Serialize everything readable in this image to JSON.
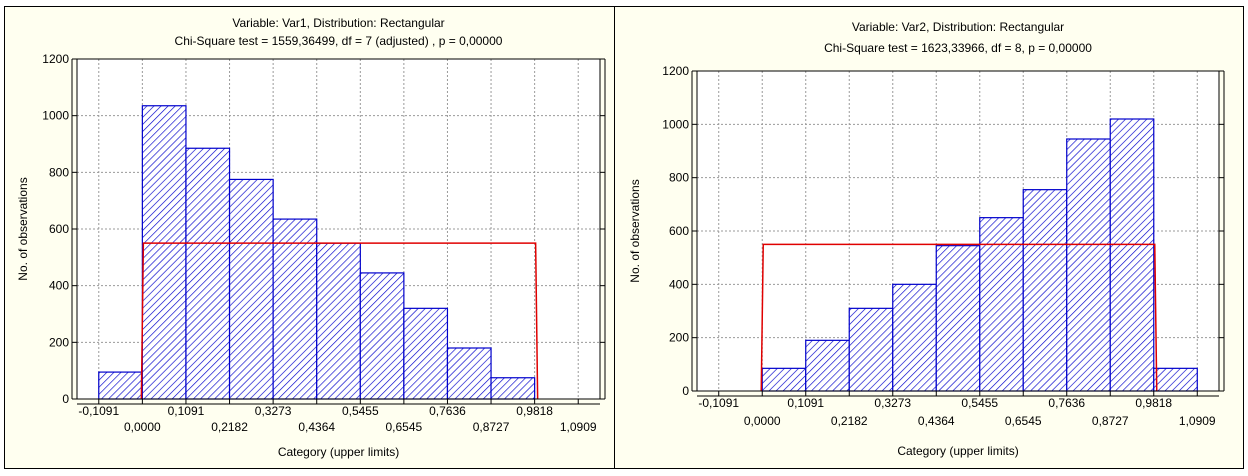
{
  "chart_data": [
    {
      "type": "bar",
      "title": "Variable: Var1, Distribution: Rectangular",
      "subtitle": "Chi-Square test = 1559,36499, df = 7 (adjusted) , p = 0,00000",
      "xlabel": "Category (upper limits)",
      "ylabel": "No. of observations",
      "ylim": [
        0,
        1200
      ],
      "yticks": [
        0,
        200,
        400,
        600,
        800,
        1000,
        1200
      ],
      "xlim": [
        -0.1636,
        1.1454
      ],
      "xticks_top": [
        "-0,1091",
        "0,1091",
        "0,3273",
        "0,5455",
        "0,7636",
        "0,9818"
      ],
      "xticks_bottom": [
        "0,0000",
        "0,2182",
        "0,4364",
        "0,6545",
        "0,8727",
        "1,0909"
      ],
      "bin_edges": [
        -0.1091,
        0.0,
        0.1091,
        0.2182,
        0.3273,
        0.4364,
        0.5455,
        0.6545,
        0.7636,
        0.8727,
        0.9818
      ],
      "values": [
        95,
        1035,
        885,
        775,
        635,
        550,
        445,
        320,
        180,
        75
      ],
      "expected": {
        "value": 550,
        "from": 0.0,
        "to": 0.9818
      },
      "grid": true,
      "colors": {
        "bars": "#0000cc",
        "fit": "#e00000"
      }
    },
    {
      "type": "bar",
      "title": "Variable: Var2, Distribution: Rectangular",
      "subtitle": "Chi-Square test = 1623,33966, df = 8, p = 0,00000",
      "xlabel": "Category (upper limits)",
      "ylabel": "No. of observations",
      "ylim": [
        0,
        1200
      ],
      "yticks": [
        0,
        200,
        400,
        600,
        800,
        1000,
        1200
      ],
      "xlim": [
        -0.1636,
        1.1454
      ],
      "xticks_top": [
        "-0,1091",
        "0,1091",
        "0,3273",
        "0,5455",
        "0,7636",
        "0,9818"
      ],
      "xticks_bottom": [
        "0,0000",
        "0,2182",
        "0,4364",
        "0,6545",
        "0,8727",
        "1,0909"
      ],
      "bin_edges": [
        0.0,
        0.1091,
        0.2182,
        0.3273,
        0.4364,
        0.5455,
        0.6545,
        0.7636,
        0.8727,
        0.9818,
        1.0909
      ],
      "values": [
        85,
        190,
        310,
        400,
        545,
        650,
        755,
        945,
        1020,
        85
      ],
      "expected": {
        "value": 550,
        "from": 0.0,
        "to": 0.9818
      },
      "grid": true,
      "colors": {
        "bars": "#0000cc",
        "fit": "#e00000"
      }
    }
  ]
}
